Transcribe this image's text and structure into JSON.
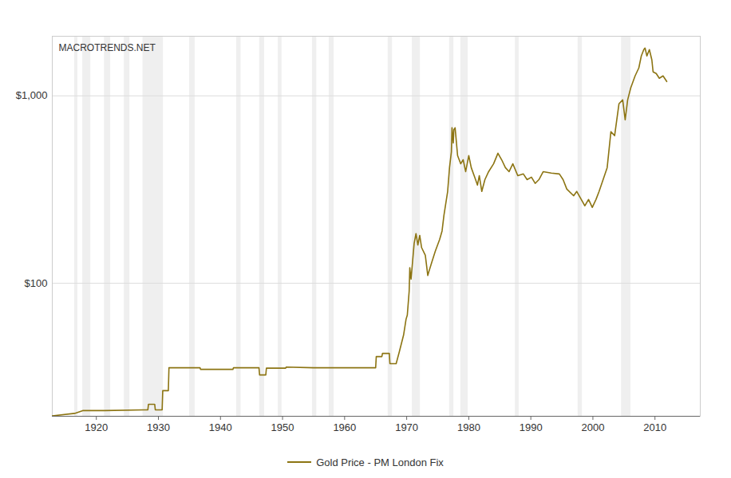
{
  "chart_data": {
    "type": "line",
    "annotations": [
      "MACROTRENDS.NET"
    ],
    "log": "y",
    "grid": true,
    "legend": "bottom",
    "xlim": [
      1912.9,
      2017.3
    ],
    "xticks": [
      1920,
      1930,
      1940,
      1950,
      1960,
      1970,
      1980,
      1990,
      2000,
      2010
    ],
    "ylim": [
      19.5,
      2080
    ],
    "yticks": [
      {
        "value": 100,
        "label": "$100"
      },
      {
        "value": 1000,
        "label": "$1,000"
      }
    ],
    "shaded_periods": [
      [
        1916.5,
        1917.0
      ],
      [
        1917.8,
        1919.1
      ],
      [
        1921.3,
        1922.3
      ],
      [
        1924.5,
        1925.4
      ],
      [
        1927.5,
        1930.8
      ],
      [
        1935.0,
        1935.9
      ],
      [
        1942.6,
        1943.3
      ],
      [
        1946.3,
        1947.1
      ],
      [
        1949.3,
        1949.9
      ],
      [
        1954.8,
        1955.5
      ],
      [
        1957.5,
        1958.3
      ],
      [
        1967.0,
        1967.7
      ],
      [
        1970.9,
        1972.2
      ],
      [
        1976.9,
        1977.6
      ],
      [
        1978.7,
        1979.9
      ],
      [
        1987.5,
        1988.1
      ],
      [
        1997.6,
        1998.3
      ],
      [
        2004.6,
        2006.1
      ]
    ],
    "x": [
      1912.9,
      1916.5,
      1917.8,
      1921.3,
      1927.5,
      1928.3,
      1928.4,
      1929.4,
      1929.5,
      1930.6,
      1930.7,
      1931.6,
      1931.7,
      1936.7,
      1936.8,
      1942.0,
      1942.1,
      1946.2,
      1946.3,
      1947.3,
      1947.4,
      1950.5,
      1950.6,
      1955.0,
      1965.0,
      1965.1,
      1966.0,
      1966.1,
      1967.2,
      1967.3,
      1968.3,
      1968.8,
      1969.5,
      1969.9,
      1970.1,
      1970.4,
      1970.5,
      1970.7,
      1970.9,
      1971.2,
      1971.5,
      1971.8,
      1972.1,
      1972.4,
      1973.0,
      1973.4,
      1973.6,
      1974.0,
      1974.6,
      1975.3,
      1975.7,
      1976.0,
      1976.6,
      1976.9,
      1977.2,
      1977.3,
      1977.5,
      1977.6,
      1977.8,
      1978.2,
      1978.7,
      1979.1,
      1979.5,
      1980.0,
      1980.4,
      1981.1,
      1981.4,
      1981.7,
      1982.1,
      1982.6,
      1983.2,
      1984.0,
      1984.7,
      1985.3,
      1985.9,
      1986.5,
      1987.1,
      1987.9,
      1988.8,
      1989.4,
      1990.1,
      1990.7,
      1991.3,
      1992.0,
      1993.3,
      1994.6,
      1995.2,
      1995.8,
      1996.9,
      1997.4,
      1998.0,
      1998.7,
      1999.3,
      1999.9,
      2000.5,
      2001.0,
      2002.3,
      2002.9,
      2003.5,
      2004.2,
      2004.8,
      2005.2,
      2005.6,
      2006.1,
      2006.8,
      2007.4,
      2007.8,
      2008.2,
      2008.4,
      2008.7,
      2009.1,
      2009.5,
      2009.7,
      2010.2,
      2010.7,
      2011.3,
      2011.9
    ],
    "series": [
      {
        "name": "Gold Price - PM London Fix",
        "color": "#8c7412",
        "values": [
          19.6,
          20.2,
          20.9,
          20.9,
          21.1,
          21.1,
          22.6,
          22.6,
          21.1,
          21.1,
          26.7,
          26.7,
          35.4,
          35.4,
          34.7,
          34.7,
          35.4,
          35.4,
          32.4,
          32.4,
          35.2,
          35.2,
          35.7,
          35.4,
          35.4,
          40.6,
          40.6,
          42.2,
          42.2,
          37.2,
          37.2,
          42.9,
          52.9,
          64.3,
          67.6,
          90.7,
          121,
          105,
          125,
          163,
          184,
          160,
          180,
          155,
          141,
          110,
          116,
          128,
          148,
          171,
          190,
          230,
          309,
          414,
          502,
          676,
          560,
          660,
          676,
          480,
          434,
          456,
          394,
          480,
          414,
          357,
          334,
          375,
          309,
          357,
          394,
          434,
          494,
          456,
          414,
          394,
          434,
          375,
          383,
          357,
          368,
          341,
          357,
          394,
          387,
          383,
          357,
          318,
          293,
          309,
          285,
          259,
          280,
          254,
          280,
          309,
          414,
          643,
          613,
          907,
          952,
          745,
          952,
          1103,
          1278,
          1409,
          1632,
          1765,
          1800,
          1632,
          1765,
          1554,
          1342,
          1316,
          1241,
          1278,
          1193
        ]
      }
    ]
  }
}
